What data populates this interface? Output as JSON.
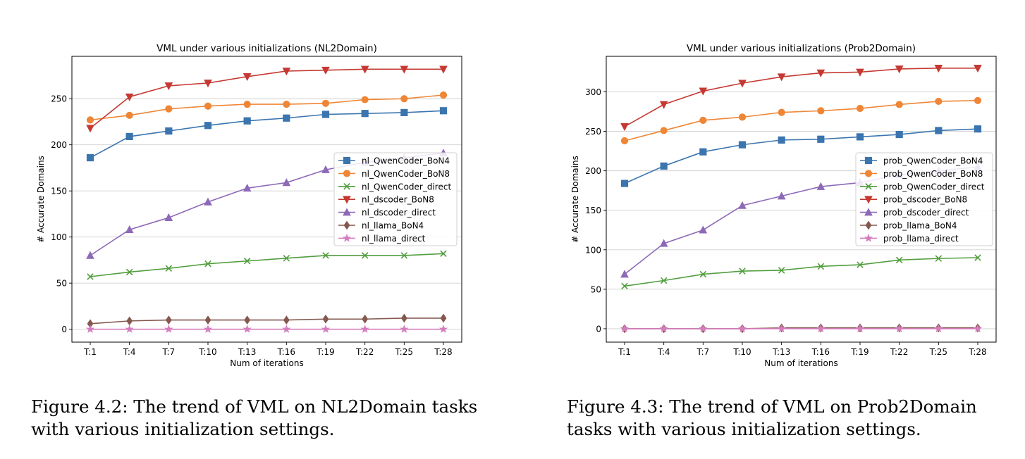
{
  "figures": [
    {
      "caption": "Figure 4.2: The trend of VML on NL2Domain tasks with various initialization settings."
    },
    {
      "caption": "Figure 4.3: The trend of VML on Prob2Domain tasks with various initialization settings."
    }
  ],
  "colors": {
    "blue": "#3b75af",
    "orange": "#ef8636",
    "green": "#519e3e",
    "red": "#c53932",
    "purple": "#8d69b8",
    "brown": "#84584e",
    "pink": "#d57dbe"
  },
  "chart_data": [
    {
      "type": "line",
      "title": "VML under various initializations (NL2Domain)",
      "xlabel": "Num of iterations",
      "ylabel": "# Accurate Domains",
      "categories": [
        "T:1",
        "T:4",
        "T:7",
        "T:10",
        "T:13",
        "T:16",
        "T:19",
        "T:22",
        "T:25",
        "T:28"
      ],
      "ylim": [
        -14,
        296
      ],
      "yticks": [
        0,
        50,
        100,
        150,
        200,
        250
      ],
      "grid": "horizontal",
      "legend_position": "center-right",
      "series": [
        {
          "name": "nl_QwenCoder_BoN4",
          "color": "#3b75af",
          "marker": "square",
          "values": [
            186,
            209,
            215,
            221,
            226,
            229,
            233,
            234,
            235,
            237
          ]
        },
        {
          "name": "nl_QwenCoder_BoN8",
          "color": "#ef8636",
          "marker": "circle",
          "values": [
            227,
            232,
            239,
            242,
            244,
            244,
            245,
            249,
            250,
            254
          ]
        },
        {
          "name": "nl_QwenCoder_direct",
          "color": "#519e3e",
          "marker": "x",
          "values": [
            57,
            62,
            66,
            71,
            74,
            77,
            80,
            80,
            80,
            82
          ]
        },
        {
          "name": "nl_dscoder_BoN8",
          "color": "#c53932",
          "marker": "triangle-down",
          "values": [
            218,
            252,
            264,
            267,
            274,
            280,
            281,
            282,
            282,
            282
          ]
        },
        {
          "name": "nl_dscoder_direct",
          "color": "#8d69b8",
          "marker": "triangle-up",
          "values": [
            80,
            108,
            121,
            138,
            153,
            159,
            173,
            181,
            186,
            191
          ]
        },
        {
          "name": "nl_llama_BoN4",
          "color": "#84584e",
          "marker": "diamond",
          "values": [
            6,
            9,
            10,
            10,
            10,
            10,
            11,
            11,
            12,
            12
          ]
        },
        {
          "name": "nl_llama_direct",
          "color": "#d57dbe",
          "marker": "star",
          "values": [
            0,
            0,
            0,
            0,
            0,
            0,
            0,
            0,
            0,
            0
          ]
        }
      ]
    },
    {
      "type": "line",
      "title": "VML under various initializations (Prob2Domain)",
      "xlabel": "Num of iterations",
      "ylabel": "# Accurate Domains",
      "categories": [
        "T:1",
        "T:4",
        "T:7",
        "T:10",
        "T:13",
        "T:16",
        "T:19",
        "T:22",
        "T:25",
        "T:28"
      ],
      "ylim": [
        -17,
        345
      ],
      "yticks": [
        0,
        50,
        100,
        150,
        200,
        250,
        300
      ],
      "grid": "horizontal",
      "legend_position": "center-right",
      "series": [
        {
          "name": "prob_QwenCoder_BoN4",
          "color": "#3b75af",
          "marker": "square",
          "values": [
            184,
            206,
            224,
            233,
            239,
            240,
            243,
            246,
            251,
            253
          ]
        },
        {
          "name": "prob_QwenCoder_BoN8",
          "color": "#ef8636",
          "marker": "circle",
          "values": [
            238,
            251,
            264,
            268,
            274,
            276,
            279,
            284,
            288,
            289
          ]
        },
        {
          "name": "prob_QwenCoder_direct",
          "color": "#519e3e",
          "marker": "x",
          "values": [
            54,
            61,
            69,
            73,
            74,
            79,
            81,
            87,
            89,
            90
          ]
        },
        {
          "name": "prob_dscoder_BoN8",
          "color": "#c53932",
          "marker": "triangle-down",
          "values": [
            256,
            284,
            301,
            311,
            319,
            324,
            325,
            329,
            330,
            330
          ]
        },
        {
          "name": "prob_dscoder_direct",
          "color": "#8d69b8",
          "marker": "triangle-up",
          "values": [
            69,
            108,
            125,
            156,
            168,
            180,
            185,
            195,
            200,
            205
          ]
        },
        {
          "name": "prob_llama_BoN4",
          "color": "#84584e",
          "marker": "diamond",
          "values": [
            0,
            0,
            0,
            0,
            1,
            1,
            1,
            1,
            1,
            1
          ]
        },
        {
          "name": "prob_llama_direct",
          "color": "#d57dbe",
          "marker": "star",
          "values": [
            0,
            0,
            0,
            0,
            0,
            0,
            0,
            0,
            0,
            0
          ]
        }
      ]
    }
  ]
}
